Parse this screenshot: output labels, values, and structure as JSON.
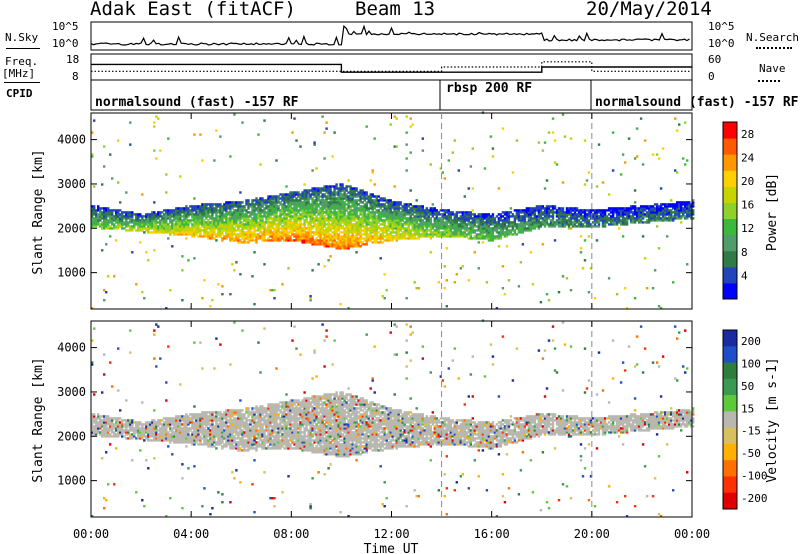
{
  "header": {
    "station": "Adak East (fitACF)",
    "beam": "Beam 13",
    "date": "20/May/2014"
  },
  "panel_labels": {
    "nsky": "N.Sky",
    "nsearch": "N.Search",
    "freq_line1": "Freq.",
    "freq_line2": "[MHz]",
    "nave": "Nave",
    "cpid": "CPID",
    "nsky_ticks": [
      "10^5",
      "10^0"
    ],
    "freq_ticks": [
      "18",
      "8"
    ],
    "nave_ticks": [
      "60",
      "0"
    ],
    "nsearch_ticks": [
      "10^5",
      "10^0"
    ]
  },
  "cpid_modes": [
    {
      "label": "normalsound (fast) -157 RF",
      "start_h": 0,
      "end_h": 14
    },
    {
      "label": "rbsp 200 RF",
      "start_h": 14,
      "end_h": 20
    },
    {
      "label": "normalsound (fast) -157 RF",
      "start_h": 20,
      "end_h": 24
    }
  ],
  "colors": {
    "power": [
      "#0000ff",
      "#2244bb",
      "#2f7a46",
      "#4f9d69",
      "#3cb83c",
      "#8fd12a",
      "#c8d400",
      "#ffd000",
      "#ff9800",
      "#ff5a00",
      "#ff0000"
    ],
    "velocity": [
      "#1a2aa0",
      "#1f4fc8",
      "#2d7d3c",
      "#3b9a52",
      "#5ec83b",
      "#b8b8b0",
      "#d8c060",
      "#ffb000",
      "#ff7000",
      "#ff3000",
      "#e00000"
    ],
    "ground_scatter": "#b8b8b0"
  },
  "chart_data": [
    {
      "type": "heatmap",
      "name": "power",
      "ylabel": "Slant Range [km]",
      "colorbar_label": "Power [dB]",
      "colorbar_ticks": [
        4,
        8,
        12,
        16,
        20,
        24,
        28
      ],
      "colorbar_range": [
        0,
        30
      ],
      "xlabel": "",
      "x_ticks": [
        "00:00",
        "04:00",
        "08:00",
        "12:00",
        "16:00",
        "20:00",
        "00:00"
      ],
      "xlim": [
        0,
        24
      ],
      "ylim": [
        180,
        4600
      ],
      "y_ticks": [
        1000,
        2000,
        3000,
        4000
      ],
      "dominant_echo_band_km": [
        {
          "t": 0,
          "lo": 2000,
          "hi": 2500,
          "pwr": 14
        },
        {
          "t": 2,
          "lo": 1900,
          "hi": 2300,
          "pwr": 18
        },
        {
          "t": 4,
          "lo": 1800,
          "hi": 2500,
          "pwr": 22
        },
        {
          "t": 6,
          "lo": 1650,
          "hi": 2600,
          "pwr": 24
        },
        {
          "t": 8,
          "lo": 1700,
          "hi": 2800,
          "pwr": 26
        },
        {
          "t": 10,
          "lo": 1500,
          "hi": 3000,
          "pwr": 25
        },
        {
          "t": 12,
          "lo": 1700,
          "hi": 2600,
          "pwr": 22
        },
        {
          "t": 14,
          "lo": 1800,
          "hi": 2400,
          "pwr": 16
        },
        {
          "t": 16,
          "lo": 1700,
          "hi": 2300,
          "pwr": 14
        },
        {
          "t": 18,
          "lo": 2000,
          "hi": 2500,
          "pwr": 10
        },
        {
          "t": 20,
          "lo": 2000,
          "hi": 2400,
          "pwr": 8
        },
        {
          "t": 24,
          "lo": 2200,
          "hi": 2600,
          "pwr": 8
        }
      ]
    },
    {
      "type": "heatmap",
      "name": "velocity",
      "ylabel": "Slant Range [km]",
      "colorbar_label": "Velocity [m s-1]",
      "colorbar_ticks": [
        200,
        100,
        50,
        15,
        -15,
        -50,
        -100,
        -200
      ],
      "xlabel": "Time UT",
      "x_ticks": [
        "00:00",
        "04:00",
        "08:00",
        "12:00",
        "16:00",
        "20:00",
        "00:00"
      ],
      "xlim": [
        0,
        24
      ],
      "ylim": [
        180,
        4600
      ],
      "y_ticks": [
        1000,
        2000,
        3000,
        4000
      ]
    },
    {
      "type": "line",
      "name": "frequency",
      "ylabel": "Freq. [MHz]",
      "ylim": [
        8,
        18
      ],
      "x": [
        0,
        10,
        10,
        18,
        18,
        24
      ],
      "values": [
        14,
        14,
        11,
        11,
        13,
        13
      ]
    },
    {
      "type": "line",
      "name": "nave",
      "ylabel": "Nave",
      "ylim": [
        0,
        60
      ],
      "x": [
        0,
        14,
        14,
        18,
        18,
        20,
        20,
        24
      ],
      "values": [
        20,
        20,
        30,
        30,
        42,
        42,
        20,
        20
      ]
    }
  ],
  "mode_boundaries_h": [
    14,
    20
  ]
}
